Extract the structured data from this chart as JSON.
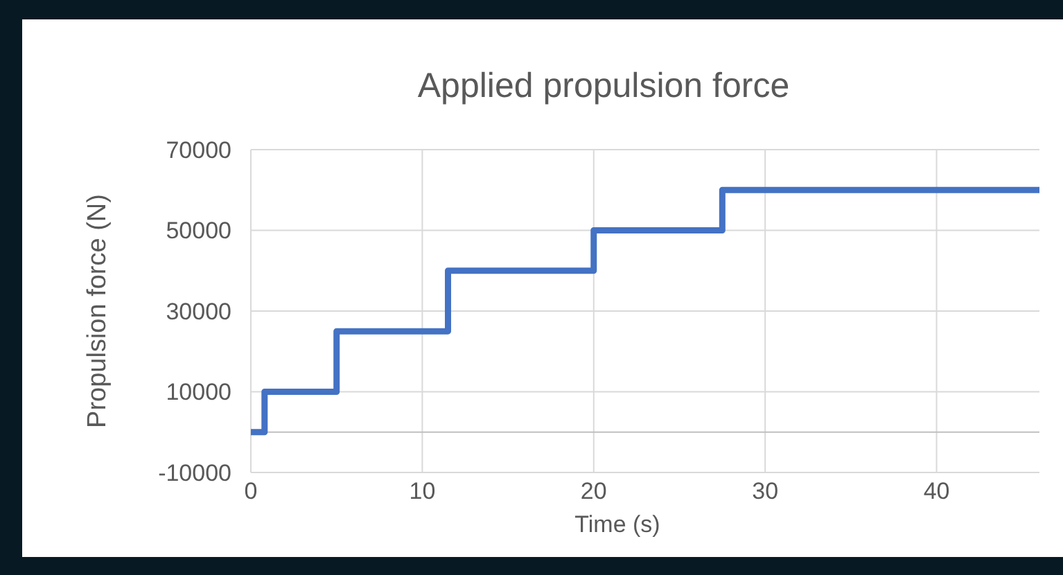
{
  "chart_data": {
    "type": "step",
    "title": "Applied propulsion force",
    "xlabel": "Time (s)",
    "ylabel": "Propulsion force (N)",
    "x": [
      0,
      0.8,
      5,
      11.5,
      20,
      27.5,
      46
    ],
    "series": [
      {
        "color": "#4472c4",
        "values": [
          0,
          10000,
          25000,
          40000,
          50000,
          60000,
          60000
        ]
      }
    ],
    "xlim": [
      0,
      46
    ],
    "xticks": [
      0,
      10,
      20,
      30,
      40
    ],
    "ylim": [
      -10000,
      70000
    ],
    "yticks": [
      -10000,
      10000,
      30000,
      50000,
      70000
    ],
    "grid": true,
    "marker": "none",
    "line_style": "solid"
  }
}
